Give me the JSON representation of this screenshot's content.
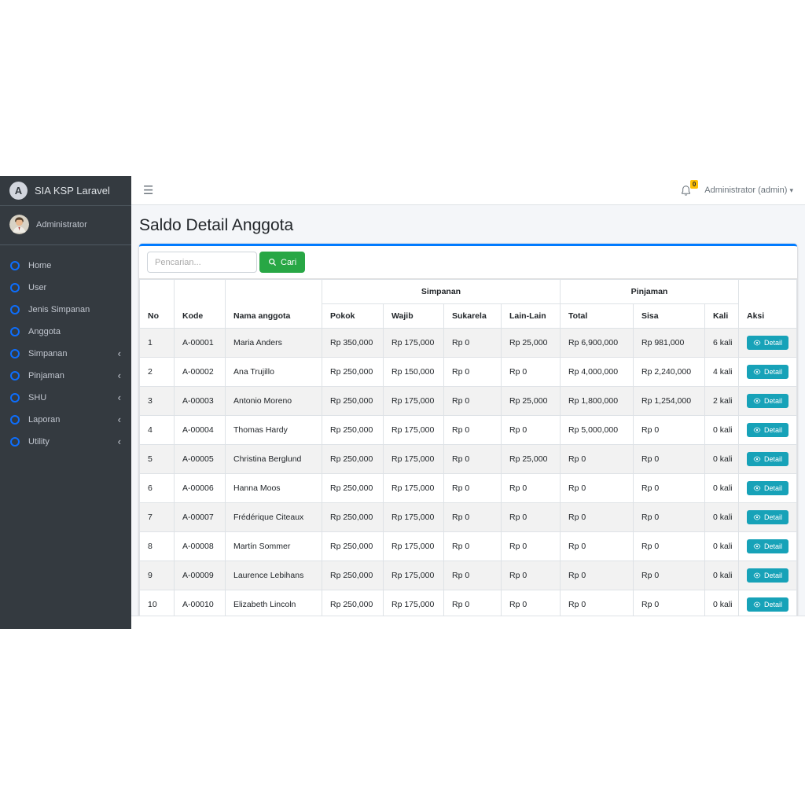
{
  "brand": {
    "title": "SIA KSP Laravel",
    "logo_letter": "A"
  },
  "sidebar": {
    "user": {
      "name": "Administrator"
    },
    "items": [
      {
        "label": "Home",
        "expandable": false
      },
      {
        "label": "User",
        "expandable": false
      },
      {
        "label": "Jenis Simpanan",
        "expandable": false
      },
      {
        "label": "Anggota",
        "expandable": false
      },
      {
        "label": "Simpanan",
        "expandable": true
      },
      {
        "label": "Pinjaman",
        "expandable": true
      },
      {
        "label": "SHU",
        "expandable": true
      },
      {
        "label": "Laporan",
        "expandable": true
      },
      {
        "label": "Utility",
        "expandable": true
      }
    ]
  },
  "navbar": {
    "notification_count": "0",
    "user_menu_label": "Administrator (admin)"
  },
  "page": {
    "title": "Saldo Detail Anggota"
  },
  "search": {
    "placeholder": "Pencarian...",
    "button_label": "Cari"
  },
  "table": {
    "group_headers": {
      "simpanan": "Simpanan",
      "pinjaman": "Pinjaman"
    },
    "columns": [
      "No",
      "Kode",
      "Nama anggota",
      "Pokok",
      "Wajib",
      "Sukarela",
      "Lain-Lain",
      "Total",
      "Sisa",
      "Kali",
      "Aksi"
    ],
    "detail_label": "Detail",
    "rows": [
      [
        "1",
        "A-00001",
        "Maria Anders",
        "Rp 350,000",
        "Rp 175,000",
        "Rp 0",
        "Rp 25,000",
        "Rp 6,900,000",
        "Rp 981,000",
        "6 kali"
      ],
      [
        "2",
        "A-00002",
        "Ana Trujillo",
        "Rp 250,000",
        "Rp 150,000",
        "Rp 0",
        "Rp 0",
        "Rp 4,000,000",
        "Rp 2,240,000",
        "4 kali"
      ],
      [
        "3",
        "A-00003",
        "Antonio Moreno",
        "Rp 250,000",
        "Rp 175,000",
        "Rp 0",
        "Rp 25,000",
        "Rp 1,800,000",
        "Rp 1,254,000",
        "2 kali"
      ],
      [
        "4",
        "A-00004",
        "Thomas Hardy",
        "Rp 250,000",
        "Rp 175,000",
        "Rp 0",
        "Rp 0",
        "Rp 5,000,000",
        "Rp 0",
        "0 kali"
      ],
      [
        "5",
        "A-00005",
        "Christina Berglund",
        "Rp 250,000",
        "Rp 175,000",
        "Rp 0",
        "Rp 25,000",
        "Rp 0",
        "Rp 0",
        "0 kali"
      ],
      [
        "6",
        "A-00006",
        "Hanna Moos",
        "Rp 250,000",
        "Rp 175,000",
        "Rp 0",
        "Rp 0",
        "Rp 0",
        "Rp 0",
        "0 kali"
      ],
      [
        "7",
        "A-00007",
        "Frédérique Citeaux",
        "Rp 250,000",
        "Rp 175,000",
        "Rp 0",
        "Rp 0",
        "Rp 0",
        "Rp 0",
        "0 kali"
      ],
      [
        "8",
        "A-00008",
        "Martín Sommer",
        "Rp 250,000",
        "Rp 175,000",
        "Rp 0",
        "Rp 0",
        "Rp 0",
        "Rp 0",
        "0 kali"
      ],
      [
        "9",
        "A-00009",
        "Laurence Lebihans",
        "Rp 250,000",
        "Rp 175,000",
        "Rp 0",
        "Rp 0",
        "Rp 0",
        "Rp 0",
        "0 kali"
      ],
      [
        "10",
        "A-00010",
        "Elizabeth Lincoln",
        "Rp 250,000",
        "Rp 175,000",
        "Rp 0",
        "Rp 0",
        "Rp 0",
        "Rp 0",
        "0 kali"
      ]
    ]
  },
  "colors": {
    "sidebar_bg": "#343a40",
    "accent_primary": "#007bff",
    "button_search": "#28a745",
    "button_detail": "#17a2b8",
    "badge_warning": "#ffc107",
    "content_bg": "#f4f6f9",
    "stripe_bg": "#f2f2f2"
  }
}
